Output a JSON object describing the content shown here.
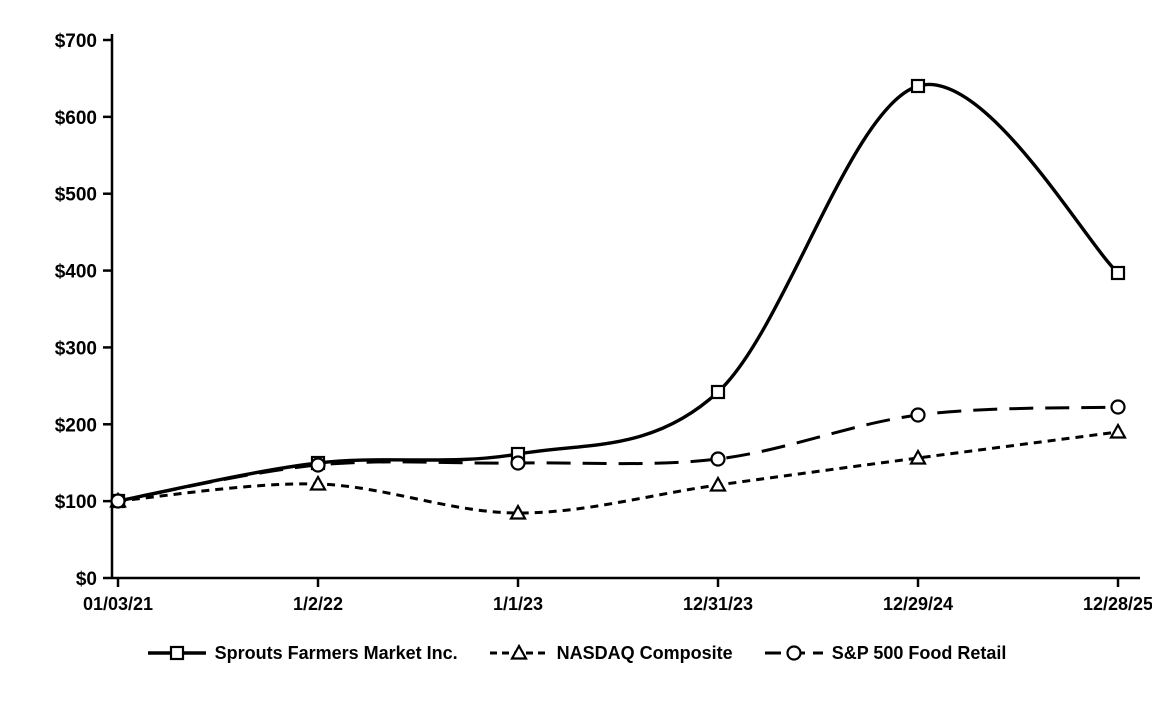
{
  "chart_data": {
    "type": "line",
    "title": "",
    "xlabel": "",
    "ylabel": "",
    "x_labels": [
      "01/03/21",
      "1/2/22",
      "1/1/23",
      "12/31/23",
      "12/29/24",
      "12/28/25"
    ],
    "y_tick_labels": [
      "$0",
      "$100",
      "$200",
      "$300",
      "$400",
      "$500",
      "$600",
      "$700"
    ],
    "y_tick_values": [
      0,
      100,
      200,
      300,
      400,
      500,
      600,
      700
    ],
    "ylim": [
      0,
      700
    ],
    "grid": "off",
    "legend_position": "bottom",
    "line_color": "#000000",
    "series": [
      {
        "name": "Sprouts Farmers Market Inc.",
        "values": [
          100,
          149,
          161,
          242,
          640,
          397
        ],
        "marker": "square",
        "dash": "solid",
        "stroke_width": 3.4
      },
      {
        "name": "NASDAQ Composite",
        "values": [
          100,
          122,
          84,
          121,
          156,
          190
        ],
        "marker": "triangle",
        "dash": "short",
        "stroke_width": 3
      },
      {
        "name": "S&P 500 Food Retail",
        "values": [
          100,
          147,
          150,
          155,
          212,
          222
        ],
        "marker": "circle",
        "dash": "long",
        "stroke_width": 3
      }
    ]
  }
}
